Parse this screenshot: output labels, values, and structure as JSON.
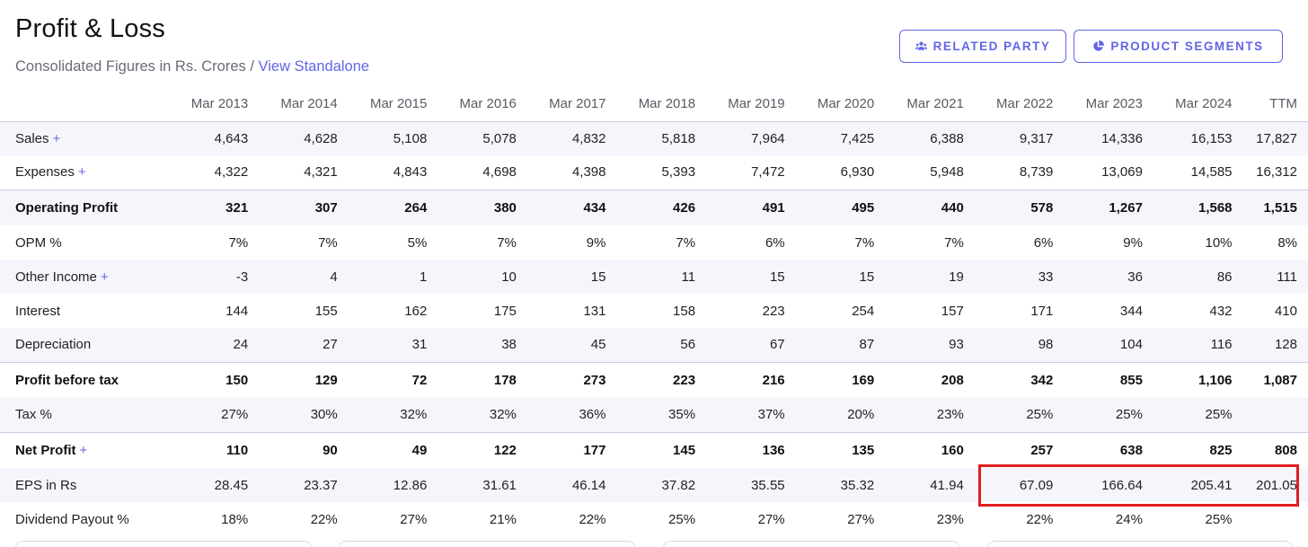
{
  "header": {
    "title": "Profit & Loss",
    "subtitle_prefix": "Consolidated Figures in Rs. Crores / ",
    "subtitle_link": "View Standalone"
  },
  "buttons": {
    "related_party": "RELATED PARTY",
    "product_segments": "PRODUCT SEGMENTS"
  },
  "table": {
    "columns": [
      "Mar 2013",
      "Mar 2014",
      "Mar 2015",
      "Mar 2016",
      "Mar 2017",
      "Mar 2018",
      "Mar 2019",
      "Mar 2020",
      "Mar 2021",
      "Mar 2022",
      "Mar 2023",
      "Mar 2024",
      "TTM"
    ],
    "rows": [
      {
        "label": "Sales",
        "expand": "+",
        "bold": false,
        "alt": true,
        "sep": false,
        "values": [
          "4,643",
          "4,628",
          "5,108",
          "5,078",
          "4,832",
          "5,818",
          "7,964",
          "7,425",
          "6,388",
          "9,317",
          "14,336",
          "16,153",
          "17,827"
        ]
      },
      {
        "label": "Expenses",
        "expand": "+",
        "bold": false,
        "alt": false,
        "sep": false,
        "values": [
          "4,322",
          "4,321",
          "4,843",
          "4,698",
          "4,398",
          "5,393",
          "7,472",
          "6,930",
          "5,948",
          "8,739",
          "13,069",
          "14,585",
          "16,312"
        ]
      },
      {
        "label": "Operating Profit",
        "expand": "",
        "bold": true,
        "alt": true,
        "sep": true,
        "values": [
          "321",
          "307",
          "264",
          "380",
          "434",
          "426",
          "491",
          "495",
          "440",
          "578",
          "1,267",
          "1,568",
          "1,515"
        ]
      },
      {
        "label": "OPM %",
        "expand": "",
        "bold": false,
        "alt": false,
        "sep": false,
        "values": [
          "7%",
          "7%",
          "5%",
          "7%",
          "9%",
          "7%",
          "6%",
          "7%",
          "7%",
          "6%",
          "9%",
          "10%",
          "8%"
        ]
      },
      {
        "label": "Other Income",
        "expand": "+",
        "bold": false,
        "alt": true,
        "sep": false,
        "values": [
          "-3",
          "4",
          "1",
          "10",
          "15",
          "11",
          "15",
          "15",
          "19",
          "33",
          "36",
          "86",
          "111"
        ]
      },
      {
        "label": "Interest",
        "expand": "",
        "bold": false,
        "alt": false,
        "sep": false,
        "values": [
          "144",
          "155",
          "162",
          "175",
          "131",
          "158",
          "223",
          "254",
          "157",
          "171",
          "344",
          "432",
          "410"
        ]
      },
      {
        "label": "Depreciation",
        "expand": "",
        "bold": false,
        "alt": true,
        "sep": false,
        "values": [
          "24",
          "27",
          "31",
          "38",
          "45",
          "56",
          "67",
          "87",
          "93",
          "98",
          "104",
          "116",
          "128"
        ]
      },
      {
        "label": "Profit before tax",
        "expand": "",
        "bold": true,
        "alt": false,
        "sep": true,
        "values": [
          "150",
          "129",
          "72",
          "178",
          "273",
          "223",
          "216",
          "169",
          "208",
          "342",
          "855",
          "1,106",
          "1,087"
        ]
      },
      {
        "label": "Tax %",
        "expand": "",
        "bold": false,
        "alt": true,
        "sep": false,
        "values": [
          "27%",
          "30%",
          "32%",
          "32%",
          "36%",
          "35%",
          "37%",
          "20%",
          "23%",
          "25%",
          "25%",
          "25%",
          ""
        ]
      },
      {
        "label": "Net Profit",
        "expand": "+",
        "bold": true,
        "alt": false,
        "sep": true,
        "values": [
          "110",
          "90",
          "49",
          "122",
          "177",
          "145",
          "136",
          "135",
          "160",
          "257",
          "638",
          "825",
          "808"
        ]
      },
      {
        "label": "EPS in Rs",
        "expand": "",
        "bold": false,
        "alt": true,
        "sep": false,
        "values": [
          "28.45",
          "23.37",
          "12.86",
          "31.61",
          "46.14",
          "37.82",
          "35.55",
          "35.32",
          "41.94",
          "67.09",
          "166.64",
          "205.41",
          "201.05"
        ]
      },
      {
        "label": "Dividend Payout %",
        "expand": "",
        "bold": false,
        "alt": false,
        "sep": false,
        "values": [
          "18%",
          "22%",
          "27%",
          "21%",
          "22%",
          "25%",
          "27%",
          "27%",
          "23%",
          "22%",
          "24%",
          "25%",
          ""
        ]
      }
    ]
  },
  "colors": {
    "accent": "#6265e6",
    "highlight": "#e01e1e",
    "row_alt": "#f5f6fb"
  },
  "icons": {
    "related_party": "users-icon",
    "product_segments": "pie-chart-icon"
  }
}
